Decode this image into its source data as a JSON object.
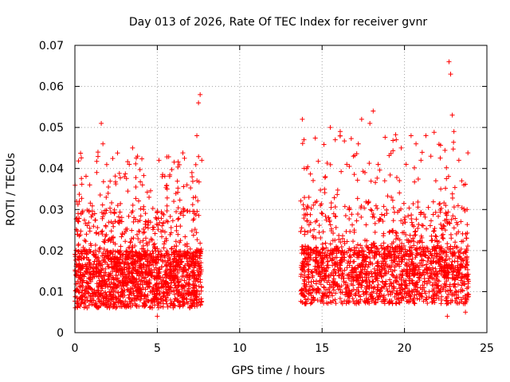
{
  "chart_data": {
    "type": "scatter",
    "title": "Day 013 of 2026, Rate Of TEC Index for receiver gvnr",
    "xlabel": "GPS time / hours",
    "ylabel": "ROTI / TECUs",
    "xlim": [
      0,
      25
    ],
    "ylim": [
      0,
      0.07
    ],
    "x_ticks": [
      "0",
      "5",
      "10",
      "15",
      "20",
      "25"
    ],
    "y_ticks": [
      "0",
      "0.01",
      "0.02",
      "0.03",
      "0.04",
      "0.05",
      "0.06",
      "0.07"
    ],
    "grid": true,
    "marker": "+",
    "series": [
      {
        "color": "#ff0000",
        "segments": [
          {
            "x_start": 0.0,
            "x_end": 7.7,
            "baseline": 0.013,
            "typical_max": 0.03,
            "peak": 0.058
          },
          {
            "x_start": 13.7,
            "x_end": 23.9,
            "baseline": 0.014,
            "typical_max": 0.032,
            "peak": 0.066
          }
        ],
        "points": [
          [
            0.1,
            0.032
          ],
          [
            0.4,
            0.018
          ],
          [
            0.7,
            0.024
          ],
          [
            0.9,
            0.036
          ],
          [
            1.2,
            0.029
          ],
          [
            1.4,
            0.044
          ],
          [
            1.6,
            0.051
          ],
          [
            1.7,
            0.046
          ],
          [
            1.9,
            0.033
          ],
          [
            2.2,
            0.027
          ],
          [
            2.6,
            0.031
          ],
          [
            3.0,
            0.038
          ],
          [
            3.3,
            0.041
          ],
          [
            3.5,
            0.045
          ],
          [
            3.8,
            0.043
          ],
          [
            4.1,
            0.036
          ],
          [
            4.5,
            0.033
          ],
          [
            4.9,
            0.028
          ],
          [
            5.1,
            0.042
          ],
          [
            5.3,
            0.038
          ],
          [
            5.6,
            0.035
          ],
          [
            6.0,
            0.032
          ],
          [
            6.4,
            0.029
          ],
          [
            6.8,
            0.036
          ],
          [
            7.1,
            0.039
          ],
          [
            7.4,
            0.048
          ],
          [
            7.5,
            0.056
          ],
          [
            7.6,
            0.058
          ],
          [
            7.7,
            0.042
          ],
          [
            5.0,
            0.004
          ],
          [
            13.8,
            0.052
          ],
          [
            13.9,
            0.047
          ],
          [
            14.2,
            0.033
          ],
          [
            14.6,
            0.027
          ],
          [
            14.9,
            0.031
          ],
          [
            15.2,
            0.038
          ],
          [
            15.5,
            0.05
          ],
          [
            15.8,
            0.047
          ],
          [
            16.1,
            0.049
          ],
          [
            16.5,
            0.041
          ],
          [
            16.9,
            0.043
          ],
          [
            17.2,
            0.046
          ],
          [
            17.4,
            0.052
          ],
          [
            17.6,
            0.039
          ],
          [
            17.9,
            0.051
          ],
          [
            18.1,
            0.054
          ],
          [
            18.4,
            0.041
          ],
          [
            18.8,
            0.037
          ],
          [
            19.2,
            0.033
          ],
          [
            19.5,
            0.047
          ],
          [
            19.8,
            0.045
          ],
          [
            20.1,
            0.041
          ],
          [
            20.4,
            0.048
          ],
          [
            20.7,
            0.046
          ],
          [
            21.0,
            0.042
          ],
          [
            21.3,
            0.048
          ],
          [
            21.6,
            0.043
          ],
          [
            21.9,
            0.037
          ],
          [
            22.2,
            0.035
          ],
          [
            22.5,
            0.031
          ],
          [
            22.7,
            0.066
          ],
          [
            22.8,
            0.063
          ],
          [
            22.9,
            0.053
          ],
          [
            23.0,
            0.049
          ],
          [
            23.3,
            0.042
          ],
          [
            23.6,
            0.036
          ],
          [
            23.8,
            0.03
          ],
          [
            22.6,
            0.004
          ],
          [
            23.7,
            0.005
          ]
        ]
      }
    ]
  }
}
